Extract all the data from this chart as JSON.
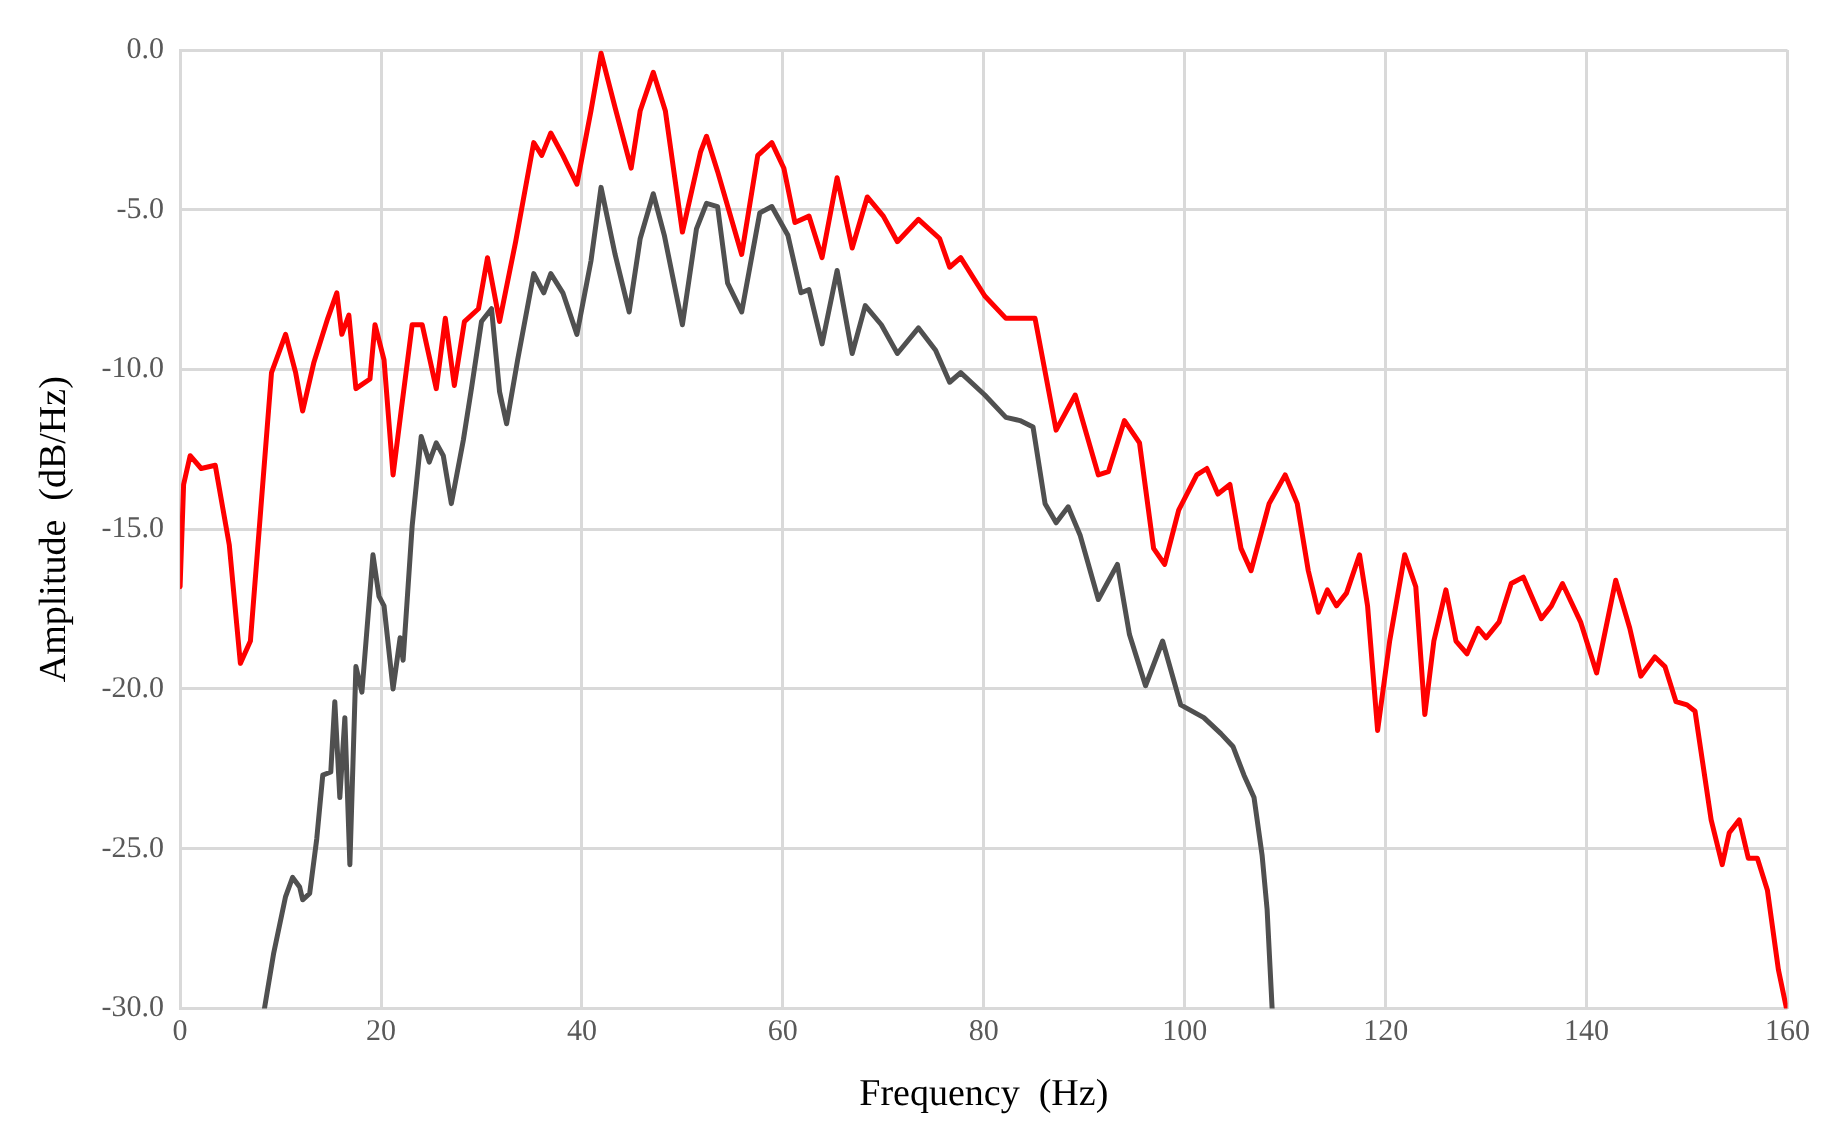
{
  "chart_data": {
    "type": "line",
    "xlabel": "Frequency  (Hz)",
    "ylabel": "Amplitude  (dB/Hz)",
    "xlim": [
      0,
      160
    ],
    "xticks": [
      0,
      20,
      40,
      60,
      80,
      100,
      120,
      140,
      160
    ],
    "ylim": [
      -30,
      0
    ],
    "yticks": [
      {
        "value": 0,
        "label": "0.0"
      },
      {
        "value": -5,
        "label": "-5.0"
      },
      {
        "value": -10,
        "label": "-10.0"
      },
      {
        "value": -15,
        "label": "-15.0"
      },
      {
        "value": -20,
        "label": "-20.0"
      },
      {
        "value": -25,
        "label": "-25.0"
      },
      {
        "value": -30,
        "label": "-30.0"
      }
    ],
    "grid": true,
    "marker": "none",
    "line_style": "solid",
    "series": [
      {
        "color": "#ff0000",
        "x": [
          0,
          0.35,
          1,
          2.1,
          3.5,
          4.9,
          6,
          7,
          9.1,
          10.5,
          11.5,
          12.2,
          13.3,
          14.7,
          15.6,
          16.1,
          16.8,
          17.5,
          18.9,
          19.4,
          20.3,
          21.2,
          22,
          23.1,
          24.1,
          25.5,
          26.4,
          27.3,
          28.3,
          29.7,
          30.6,
          31.8,
          33.4,
          35.2,
          36,
          36.9,
          38.1,
          39.5,
          40.9,
          41.9,
          43.3,
          44.9,
          45.8,
          47.1,
          48.3,
          50,
          51.8,
          52.4,
          53.5,
          55.9,
          57.5,
          58.9,
          60.1,
          61.2,
          62.6,
          63.9,
          65.4,
          66.9,
          68.4,
          70,
          71.4,
          73.5,
          75.6,
          76.6,
          77.7,
          80.1,
          82.2,
          85.1,
          87.2,
          89.1,
          91.4,
          92.4,
          94,
          95.5,
          96.9,
          98,
          99.4,
          101.2,
          102.2,
          103.3,
          104.5,
          105.6,
          106.6,
          108.4,
          110,
          111.2,
          112.3,
          113.3,
          114.2,
          115.1,
          116.1,
          117.4,
          118.2,
          119.2,
          120.4,
          121.9,
          123,
          123.9,
          124.8,
          126,
          127,
          128.1,
          129.2,
          130,
          131.3,
          132.5,
          133.7,
          135.5,
          136.5,
          137.6,
          139.4,
          141,
          142.9,
          144.3,
          145.4,
          146.8,
          147.8,
          148.9,
          150,
          150.8,
          152.4,
          153.5,
          154.2,
          155.2,
          156.1,
          157,
          158,
          159.1,
          159.9
        ],
        "values": [
          -16.8,
          -13.6,
          -12.7,
          -13.1,
          -13.0,
          -15.5,
          -19.2,
          -18.5,
          -10.1,
          -8.9,
          -10.1,
          -11.3,
          -9.8,
          -8.4,
          -7.6,
          -8.9,
          -8.3,
          -10.6,
          -10.3,
          -8.6,
          -9.7,
          -13.3,
          -11.3,
          -8.6,
          -8.6,
          -10.6,
          -8.4,
          -10.5,
          -8.5,
          -8.1,
          -6.5,
          -8.5,
          -6.0,
          -2.9,
          -3.3,
          -2.6,
          -3.3,
          -4.2,
          -1.9,
          -0.1,
          -1.8,
          -3.7,
          -1.9,
          -0.7,
          -1.9,
          -5.7,
          -3.2,
          -2.7,
          -3.8,
          -6.4,
          -3.3,
          -2.9,
          -3.7,
          -5.4,
          -5.2,
          -6.5,
          -4.0,
          -6.2,
          -4.6,
          -5.2,
          -6.0,
          -5.3,
          -5.9,
          -6.8,
          -6.5,
          -7.7,
          -8.4,
          -8.4,
          -11.9,
          -10.8,
          -13.3,
          -13.2,
          -11.6,
          -12.3,
          -15.6,
          -16.1,
          -14.4,
          -13.3,
          -13.1,
          -13.9,
          -13.6,
          -15.6,
          -16.3,
          -14.2,
          -13.3,
          -14.2,
          -16.3,
          -17.6,
          -16.9,
          -17.4,
          -17.0,
          -15.8,
          -17.4,
          -21.3,
          -18.5,
          -15.8,
          -16.8,
          -20.8,
          -18.5,
          -16.9,
          -18.5,
          -18.9,
          -18.1,
          -18.4,
          -17.9,
          -16.7,
          -16.5,
          -17.8,
          -17.4,
          -16.7,
          -17.9,
          -19.5,
          -16.6,
          -18.1,
          -19.6,
          -19.0,
          -19.3,
          -20.4,
          -20.5,
          -20.7,
          -24.1,
          -25.5,
          -24.5,
          -24.1,
          -25.3,
          -25.3,
          -26.3,
          -28.8,
          -30.0
        ]
      },
      {
        "color": "#505050",
        "x": [
          8.4,
          9.3,
          10.5,
          11.2,
          11.9,
          12.2,
          12.9,
          13.6,
          14.2,
          15,
          15.4,
          15.9,
          16.4,
          16.9,
          17.5,
          18.1,
          19.2,
          19.8,
          20.3,
          21.2,
          21.9,
          22.2,
          23.1,
          24,
          24.8,
          25.5,
          26.2,
          27,
          28.2,
          29,
          30,
          31,
          31.8,
          32.5,
          33.6,
          35.2,
          36.2,
          36.9,
          38.1,
          39.5,
          40.9,
          41.9,
          43.3,
          44.7,
          45.8,
          47.1,
          48.2,
          50,
          51.4,
          52.4,
          53.5,
          54.5,
          55.9,
          57.7,
          58.9,
          60.5,
          61.8,
          62.6,
          63.9,
          65.4,
          66.9,
          68.2,
          69.8,
          71.4,
          73.5,
          75.2,
          76.6,
          77.7,
          80.1,
          82.2,
          83.6,
          84.9,
          86.1,
          87.2,
          88.4,
          89.6,
          91.4,
          93.3,
          94.5,
          96.1,
          97.8,
          99.6,
          101.9,
          103.6,
          104.8,
          105.9,
          106.9,
          107.7,
          108.2,
          108.7
        ],
        "values": [
          -30,
          -28.3,
          -26.5,
          -25.9,
          -26.2,
          -26.6,
          -26.4,
          -24.7,
          -22.7,
          -22.6,
          -20.4,
          -23.4,
          -20.9,
          -25.5,
          -19.3,
          -20.1,
          -15.8,
          -17.1,
          -17.4,
          -20.0,
          -18.4,
          -19.1,
          -14.9,
          -12.1,
          -12.9,
          -12.3,
          -12.7,
          -14.2,
          -12.2,
          -10.6,
          -8.5,
          -8.1,
          -10.7,
          -11.7,
          -9.7,
          -7.0,
          -7.6,
          -7.0,
          -7.6,
          -8.9,
          -6.6,
          -4.3,
          -6.4,
          -8.2,
          -5.9,
          -4.5,
          -5.8,
          -8.6,
          -5.6,
          -4.8,
          -4.9,
          -7.3,
          -8.2,
          -5.1,
          -4.9,
          -5.8,
          -7.6,
          -7.5,
          -9.2,
          -6.9,
          -9.5,
          -8.0,
          -8.6,
          -9.5,
          -8.7,
          -9.4,
          -10.4,
          -10.1,
          -10.8,
          -11.5,
          -11.6,
          -11.8,
          -14.2,
          -14.8,
          -14.3,
          -15.2,
          -17.2,
          -16.1,
          -18.3,
          -19.9,
          -18.5,
          -20.5,
          -20.9,
          -21.4,
          -21.8,
          -22.7,
          -23.4,
          -25.2,
          -26.9,
          -30
        ]
      }
    ]
  }
}
